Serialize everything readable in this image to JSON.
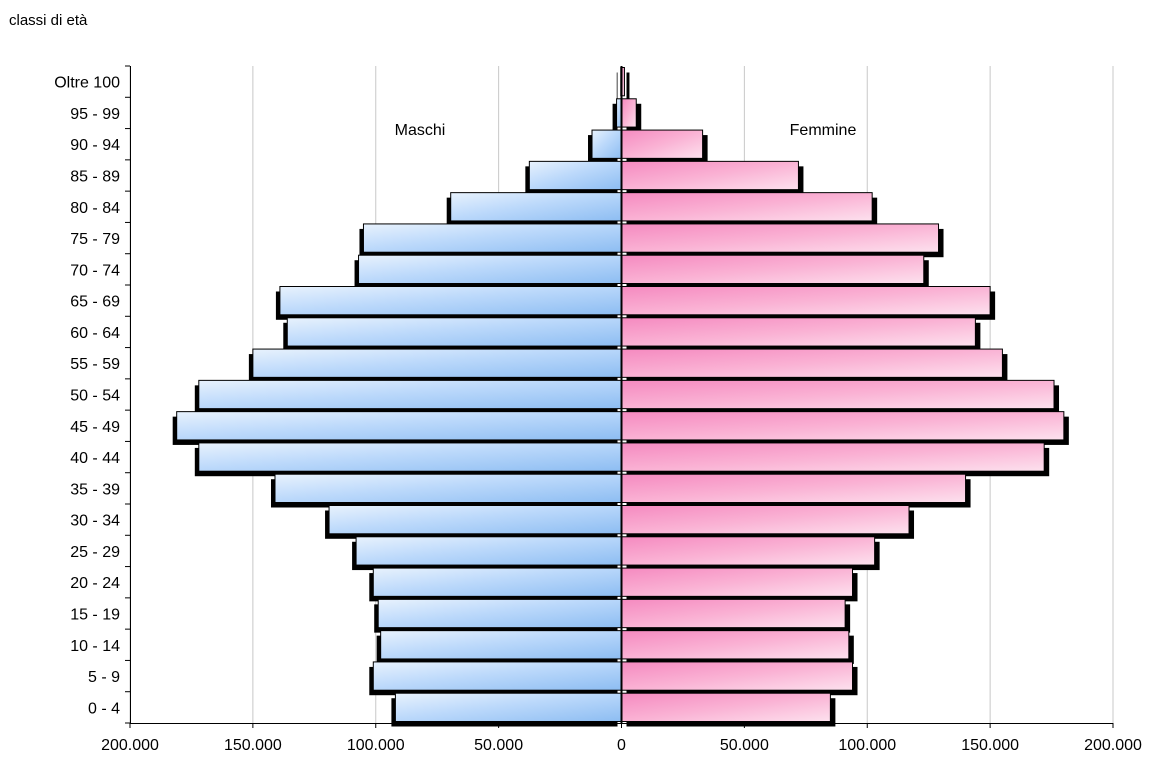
{
  "chart_data": {
    "type": "bar",
    "orientation": "horizontal-pyramid",
    "title": "classi di età",
    "categories": [
      "0 - 4",
      "5 - 9",
      "10 - 14",
      "15 - 19",
      "20 - 24",
      "25 - 29",
      "30 - 34",
      "35 - 39",
      "40 - 44",
      "45 - 49",
      "50 - 54",
      "55 - 59",
      "60 - 64",
      "65 - 69",
      "70 - 74",
      "75 - 79",
      "80 - 84",
      "85 - 89",
      "90 - 94",
      "95 - 99",
      "Oltre 100"
    ],
    "series": [
      {
        "name": "Maschi",
        "side": "left",
        "color": "#a9cdf7",
        "values": [
          92000,
          101000,
          98000,
          99000,
          101000,
          108000,
          119000,
          141000,
          172000,
          181000,
          172000,
          150000,
          136000,
          139000,
          107000,
          105000,
          69500,
          37500,
          12000,
          2000,
          300
        ]
      },
      {
        "name": "Femmine",
        "side": "right",
        "color": "#f9a9cf",
        "values": [
          85000,
          94000,
          92500,
          91000,
          94000,
          103000,
          117000,
          140000,
          172000,
          180000,
          176000,
          155000,
          144000,
          150000,
          123000,
          129000,
          102000,
          72000,
          33000,
          6000,
          1200
        ]
      }
    ],
    "xlim": [
      -200000,
      200000
    ],
    "x_ticks": [
      -200000,
      -150000,
      -100000,
      -50000,
      0,
      50000,
      100000,
      150000,
      200000
    ],
    "x_tick_labels": [
      "200.000",
      "150.000",
      "100.000",
      "50.000",
      "0",
      "50.000",
      "100.000",
      "150.000",
      "200.000"
    ],
    "grid": true,
    "shadow": true
  }
}
